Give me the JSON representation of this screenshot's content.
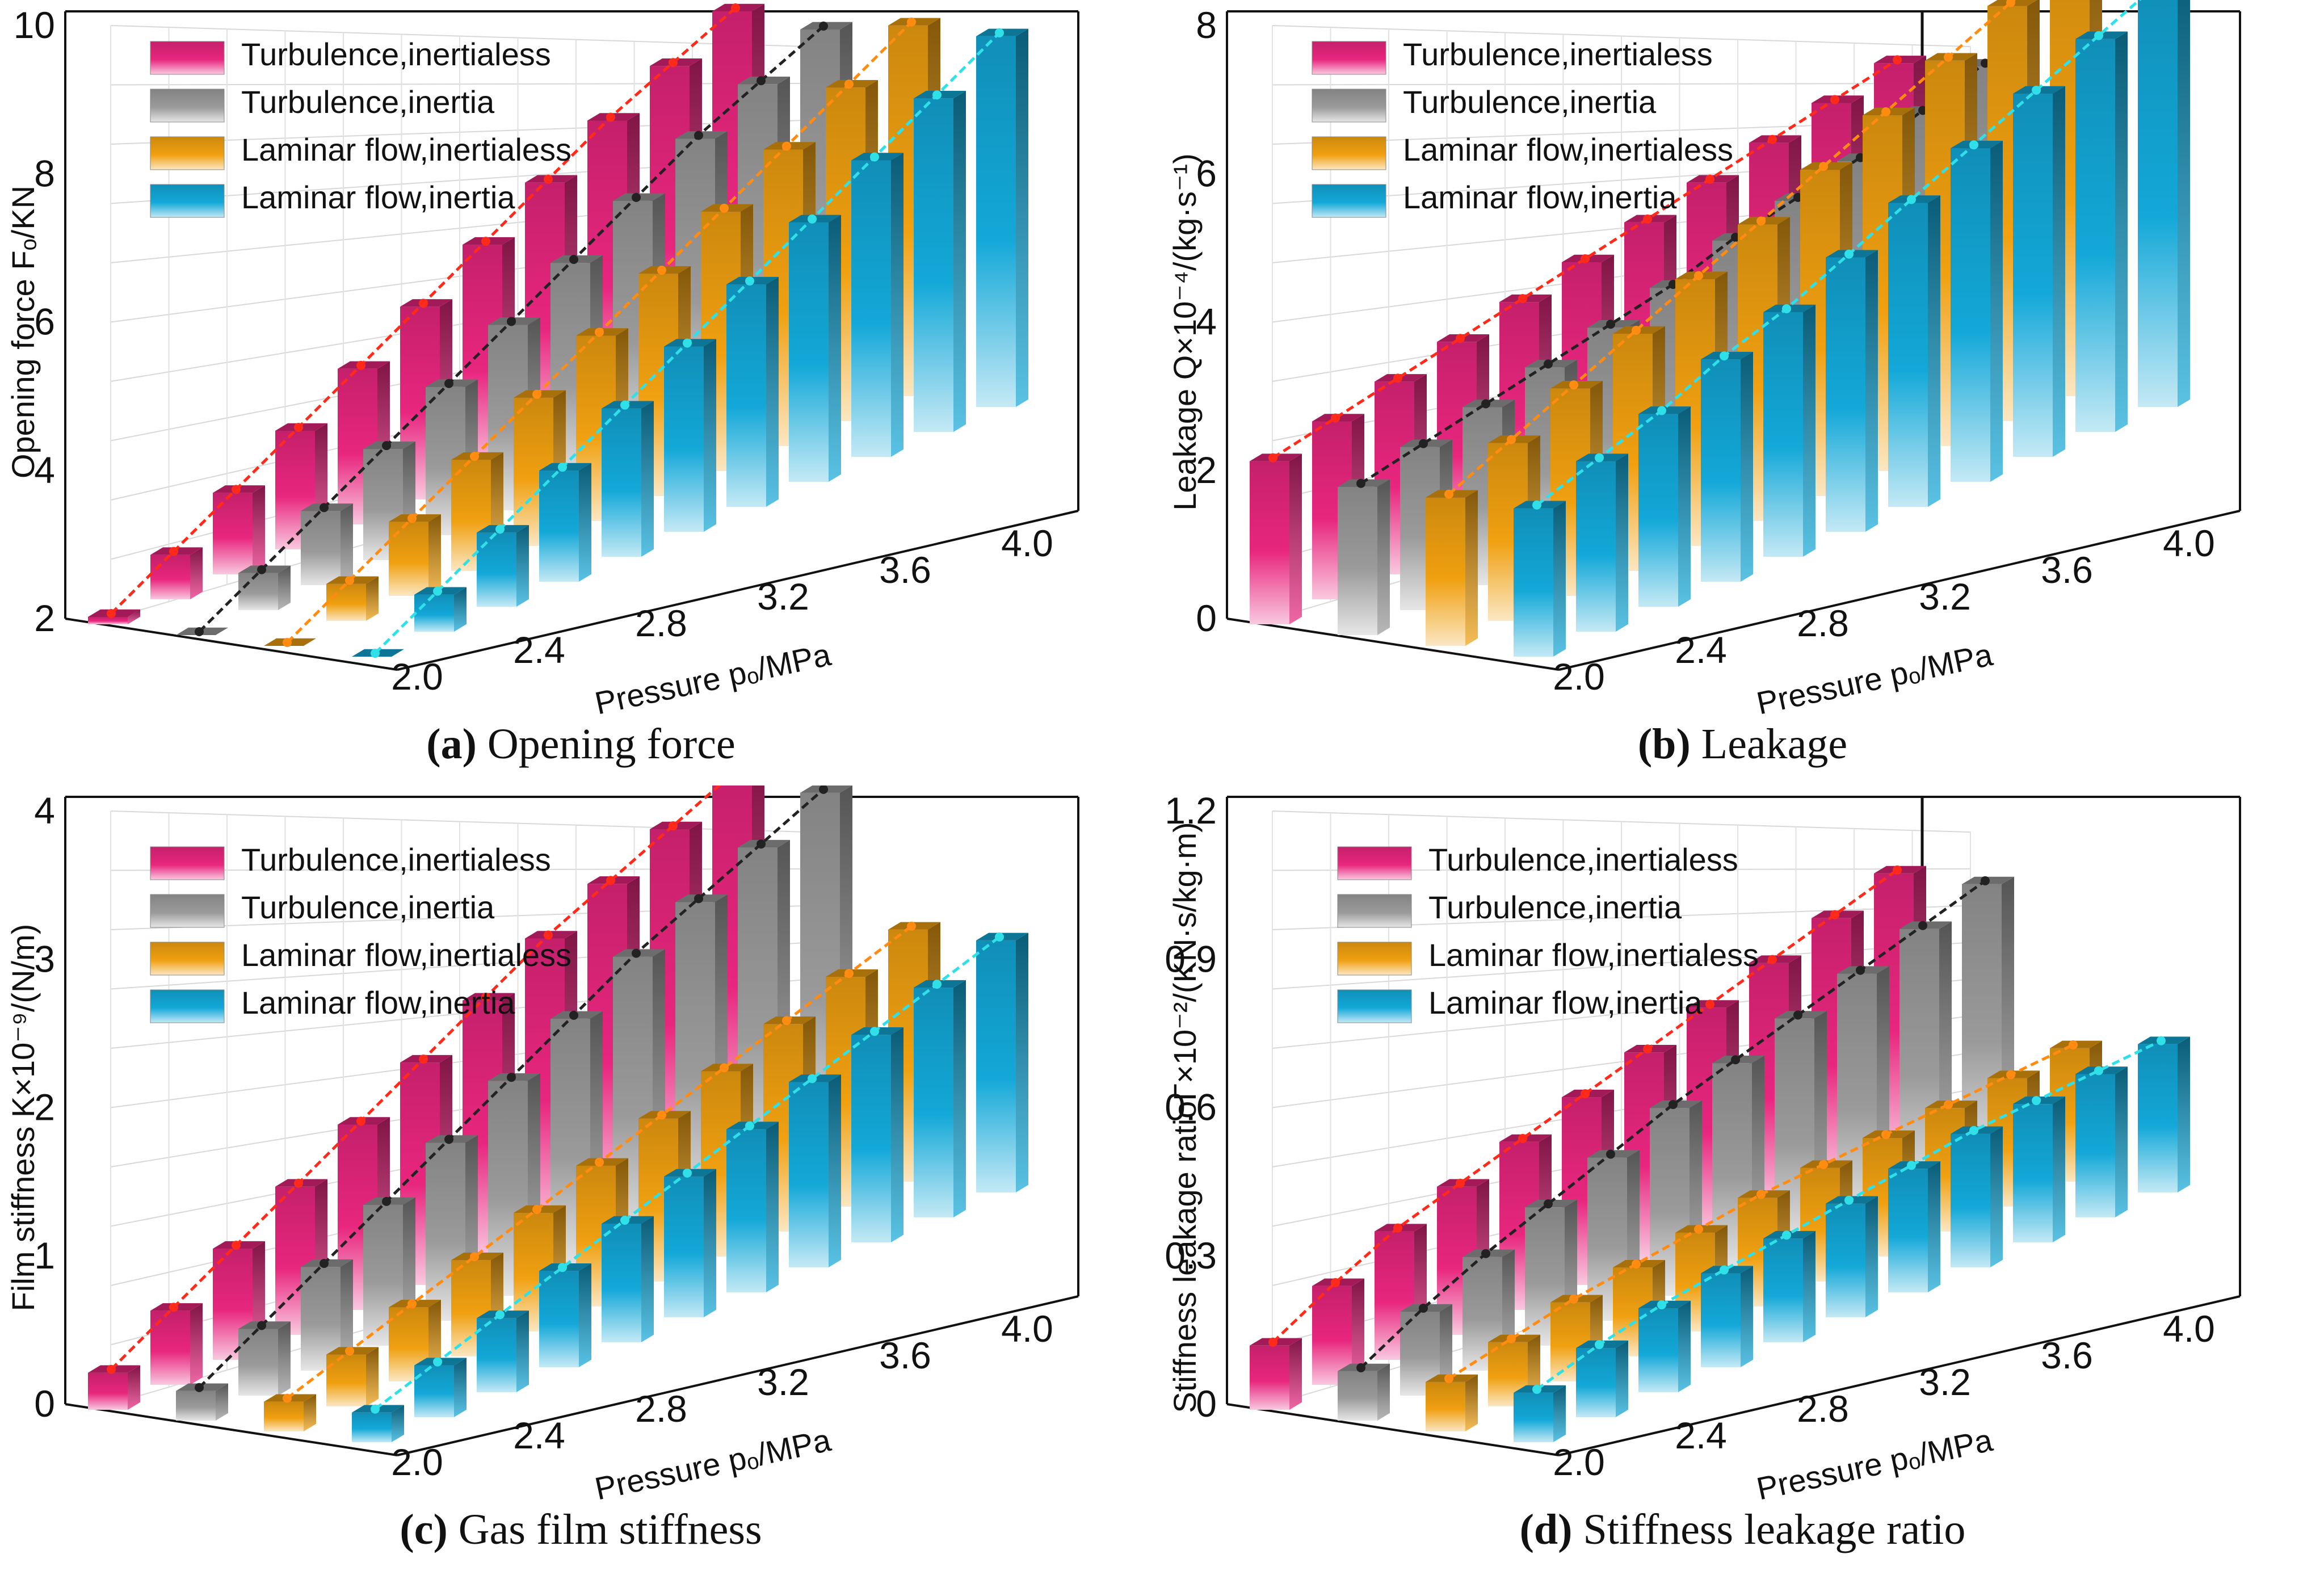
{
  "figure": {
    "series_names": [
      "Turbulence,inertialess",
      "Turbulence,inertia",
      "Laminar flow,inertialess",
      "Laminar flow,inertia"
    ],
    "x_axis_label": "Pressure pₒ/MPa",
    "x_tick_labels": [
      "2.0",
      "2.4",
      "2.8",
      "3.2",
      "3.6",
      "4.0"
    ]
  },
  "colors": {
    "turb_inertialess": "#e8267e",
    "turb_inertia": "#9a9a9a",
    "lam_inertialess": "#f0a010",
    "lam_inertia": "#13a8d8",
    "trend_turb_inertialess": "#ff2a1a",
    "trend_turb_inertia": "#222222",
    "trend_lam_inertialess": "#ff8c10",
    "trend_lam_inertia": "#30e0e8"
  },
  "chart_data": [
    {
      "type": "bar",
      "panel": "a",
      "caption_letter": "(a)",
      "caption_text": "Opening force",
      "ylabel": "Opening force Fₒ/KN",
      "ylim": [
        2,
        10
      ],
      "y_ticks": [
        "2",
        "4",
        "6",
        "8",
        "10"
      ],
      "x": [
        2.0,
        2.2,
        2.4,
        2.6,
        2.8,
        3.0,
        3.2,
        3.4,
        3.6,
        3.8,
        4.0
      ],
      "series": [
        {
          "name": "Turbulence,inertialess",
          "values": [
            2.1,
            2.6,
            3.1,
            3.6,
            4.1,
            4.6,
            5.1,
            5.6,
            6.1,
            6.5,
            6.9
          ]
        },
        {
          "name": "Turbulence,inertia",
          "values": [
            2.0,
            2.5,
            3.0,
            3.5,
            4.0,
            4.5,
            5.0,
            5.5,
            6.0,
            6.4,
            6.8
          ]
        },
        {
          "name": "Laminar flow,inertialess",
          "values": [
            2.0,
            2.5,
            3.0,
            3.5,
            4.0,
            4.5,
            5.0,
            5.5,
            6.0,
            6.5,
            7.0
          ]
        },
        {
          "name": "Laminar flow,inertia",
          "values": [
            2.0,
            2.5,
            3.0,
            3.5,
            4.0,
            4.5,
            5.0,
            5.5,
            6.0,
            6.5,
            7.0
          ]
        }
      ]
    },
    {
      "type": "bar",
      "panel": "b",
      "caption_letter": "(b)",
      "caption_text": "Leakage",
      "ylabel": "Leakage Q×10⁻⁴/(kg·s⁻¹)",
      "ylim": [
        0,
        8
      ],
      "y_ticks": [
        "0",
        "2",
        "4",
        "6",
        "8"
      ],
      "x": [
        2.0,
        2.2,
        2.4,
        2.6,
        2.8,
        3.0,
        3.2,
        3.4,
        3.6,
        3.8,
        4.0
      ],
      "series": [
        {
          "name": "Turbulence,inertialess",
          "values": [
            2.2,
            2.4,
            2.6,
            2.8,
            3.0,
            3.2,
            3.4,
            3.6,
            3.8,
            4.0,
            4.2
          ]
        },
        {
          "name": "Turbulence,inertia",
          "values": [
            2.0,
            2.2,
            2.4,
            2.6,
            2.8,
            3.0,
            3.3,
            3.5,
            3.7,
            4.0,
            4.3
          ]
        },
        {
          "name": "Laminar flow,inertialess",
          "values": [
            2.0,
            2.4,
            2.8,
            3.2,
            3.6,
            4.0,
            4.4,
            4.8,
            5.2,
            5.6,
            6.0
          ]
        },
        {
          "name": "Laminar flow,inertia",
          "values": [
            2.0,
            2.3,
            2.6,
            3.0,
            3.3,
            3.7,
            4.1,
            4.5,
            4.9,
            5.3,
            5.7
          ]
        }
      ]
    },
    {
      "type": "bar",
      "panel": "c",
      "caption_letter": "(c)",
      "caption_text": "Gas film stiffness",
      "ylabel": "Film stiffness K×10⁻⁹/(N/m)",
      "ylim": [
        0,
        4
      ],
      "y_ticks": [
        "0",
        "1",
        "2",
        "3",
        "4"
      ],
      "x": [
        2.0,
        2.2,
        2.4,
        2.6,
        2.8,
        3.0,
        3.2,
        3.4,
        3.6,
        3.8,
        4.0
      ],
      "series": [
        {
          "name": "Turbulence,inertialess",
          "values": [
            0.25,
            0.5,
            0.75,
            1.0,
            1.25,
            1.5,
            1.75,
            2.0,
            2.2,
            2.4,
            2.6
          ]
        },
        {
          "name": "Turbulence,inertia",
          "values": [
            0.2,
            0.45,
            0.7,
            0.95,
            1.2,
            1.45,
            1.7,
            1.95,
            2.15,
            2.35,
            2.55
          ]
        },
        {
          "name": "Laminar flow,inertialess",
          "values": [
            0.2,
            0.35,
            0.5,
            0.65,
            0.8,
            0.95,
            1.1,
            1.25,
            1.4,
            1.55,
            1.7
          ]
        },
        {
          "name": "Laminar flow,inertia",
          "values": [
            0.2,
            0.35,
            0.5,
            0.65,
            0.8,
            0.95,
            1.1,
            1.25,
            1.4,
            1.55,
            1.7
          ]
        }
      ]
    },
    {
      "type": "bar",
      "panel": "d",
      "caption_letter": "(d)",
      "caption_text": "Stiffness leakage ratio",
      "ylabel": "Stiffness leakage ratioΓ×10⁻²/(KN·s/kg·m)",
      "ylim": [
        0,
        1.2
      ],
      "y_ticks": [
        "0",
        "0.3",
        "0.6",
        "0.9",
        "1.2"
      ],
      "x": [
        2.0,
        2.2,
        2.4,
        2.6,
        2.8,
        3.0,
        3.2,
        3.4,
        3.6,
        3.8,
        4.0
      ],
      "series": [
        {
          "name": "Turbulence,inertialess",
          "values": [
            0.13,
            0.2,
            0.26,
            0.3,
            0.34,
            0.38,
            0.42,
            0.46,
            0.5,
            0.54,
            0.58
          ]
        },
        {
          "name": "Turbulence,inertia",
          "values": [
            0.1,
            0.17,
            0.23,
            0.28,
            0.33,
            0.38,
            0.42,
            0.46,
            0.5,
            0.54,
            0.58
          ]
        },
        {
          "name": "Laminar flow,inertialess",
          "values": [
            0.1,
            0.13,
            0.16,
            0.18,
            0.2,
            0.22,
            0.23,
            0.24,
            0.25,
            0.26,
            0.27
          ]
        },
        {
          "name": "Laminar flow,inertia",
          "values": [
            0.1,
            0.14,
            0.17,
            0.19,
            0.21,
            0.23,
            0.25,
            0.27,
            0.28,
            0.29,
            0.3
          ]
        }
      ]
    }
  ]
}
